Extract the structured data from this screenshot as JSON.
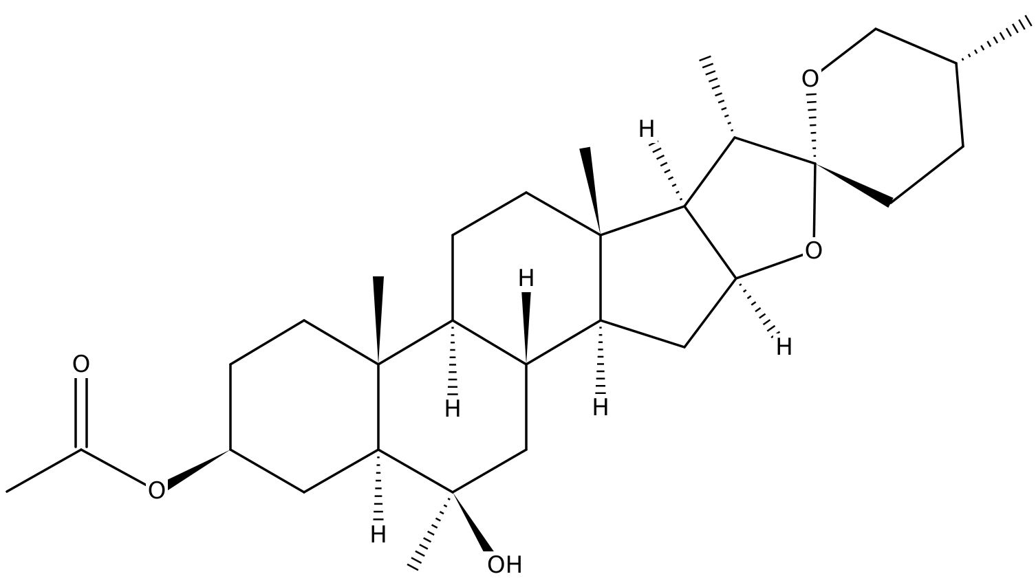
{
  "molecule": {
    "labels": [
      "O",
      "O",
      "H",
      "OH",
      "H",
      "H",
      "H",
      "H",
      "O",
      "H",
      "O"
    ]
  }
}
